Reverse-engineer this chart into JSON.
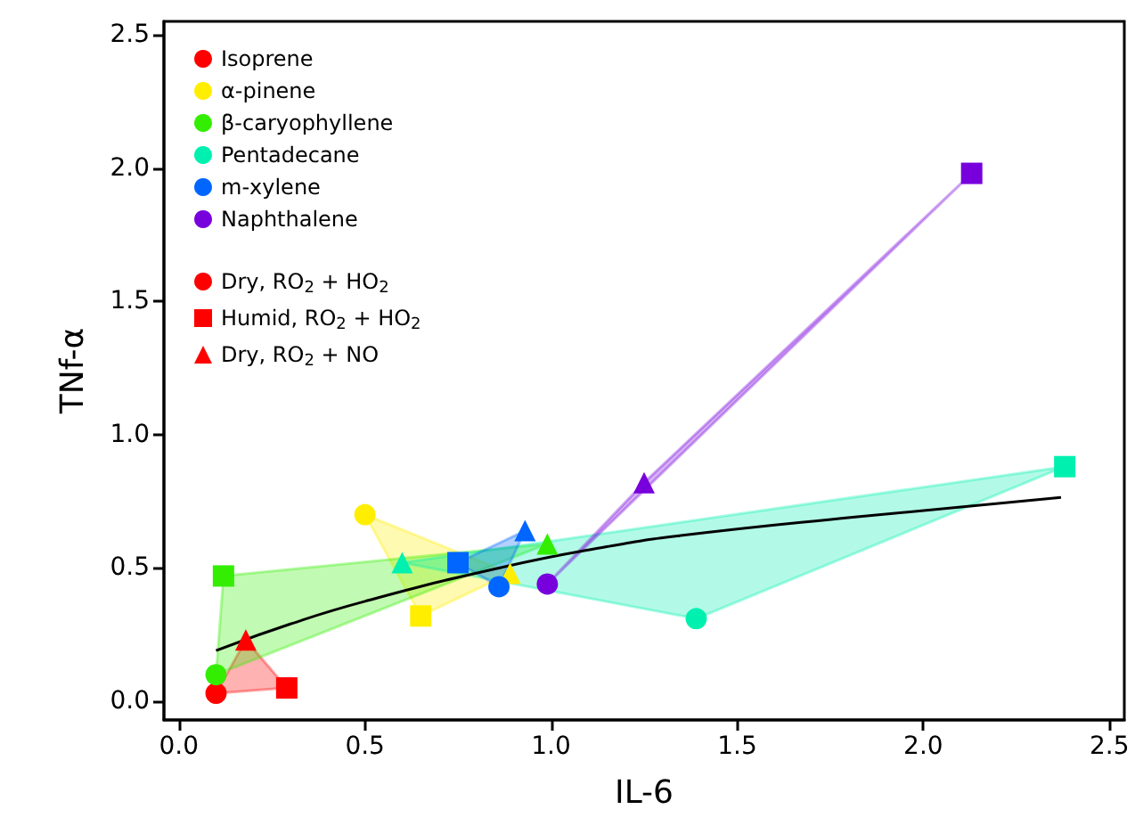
{
  "chart_data": {
    "type": "scatter",
    "xlabel": "IL-6",
    "ylabel": "TNf-α",
    "xlim": [
      -0.04,
      2.54
    ],
    "ylim": [
      -0.07,
      2.55
    ],
    "xticks": [
      {
        "value": 0,
        "label": "0.0"
      },
      {
        "value": 0.5,
        "label": "0.5"
      },
      {
        "value": 1,
        "label": "1.0"
      },
      {
        "value": 1.5,
        "label": "1.5"
      },
      {
        "value": 2,
        "label": "2.0"
      },
      {
        "value": 2.5,
        "label": "2.5"
      }
    ],
    "yticks": [
      {
        "value": 0,
        "label": "0.0"
      },
      {
        "value": 0.5,
        "label": "0.5"
      },
      {
        "value": 1,
        "label": "1.0"
      },
      {
        "value": 1.5,
        "label": "1.5"
      },
      {
        "value": 2,
        "label": "2.0"
      },
      {
        "value": 2.5,
        "label": "2.5"
      }
    ],
    "grid": false,
    "legend": "top left",
    "series": [
      {
        "name": "Isoprene",
        "color": "#ff0000",
        "x": [
          0.1,
          0.29,
          0.18
        ],
        "values": [
          0.03,
          0.05,
          0.23
        ],
        "marker": [
          "circle",
          "square",
          "triangle"
        ]
      },
      {
        "name": "α-pinene",
        "color": "#ffee00",
        "x": [
          0.5,
          0.65,
          0.89
        ],
        "values": [
          0.7,
          0.32,
          0.48
        ],
        "marker": [
          "circle",
          "square",
          "triangle"
        ]
      },
      {
        "name": "β-caryophyllene",
        "color": "#33ee00",
        "x": [
          0.1,
          0.12,
          0.99
        ],
        "values": [
          0.1,
          0.47,
          0.59
        ],
        "marker": [
          "circle",
          "square",
          "triangle"
        ]
      },
      {
        "name": "Pentadecane",
        "color": "#00f0b0",
        "x": [
          1.39,
          2.38,
          0.6
        ],
        "values": [
          0.31,
          0.88,
          0.52
        ],
        "marker": [
          "circle",
          "square",
          "triangle"
        ]
      },
      {
        "name": "m-xylene",
        "color": "#0066ff",
        "x": [
          0.86,
          0.75,
          0.93
        ],
        "values": [
          0.43,
          0.52,
          0.64
        ],
        "marker": [
          "circle",
          "square",
          "triangle"
        ]
      },
      {
        "name": "Naphthalene",
        "color": "#7700dd",
        "x": [
          0.99,
          2.13,
          1.25
        ],
        "values": [
          0.44,
          1.98,
          0.82
        ],
        "marker": [
          "circle",
          "square",
          "triangle"
        ]
      },
      {
        "name": "Dry, RO$_{2}$ + HO$_{2}$",
        "color": "#ff0000",
        "marker": "circle"
      },
      {
        "name": "Humid, RO$_{2}$ + HO$_{2}$",
        "color": "#ff0000",
        "marker": "square"
      },
      {
        "name": "Dry, RO$_{2}$ + NO",
        "color": "#ff0000",
        "marker": "triangle"
      },
      {
        "type": "area",
        "color": "#ff0000",
        "x": [
          0.1,
          0.29,
          0.18
        ],
        "values": [
          0.03,
          0.05,
          0.23
        ]
      },
      {
        "type": "area",
        "color": "#ffee00",
        "x": [
          0.5,
          0.65,
          0.89
        ],
        "values": [
          0.7,
          0.32,
          0.48
        ]
      },
      {
        "type": "area",
        "color": "#33ee00",
        "x": [
          0.1,
          0.12,
          0.99
        ],
        "values": [
          0.1,
          0.47,
          0.59
        ]
      },
      {
        "type": "area",
        "color": "#00f0b0",
        "x": [
          1.39,
          2.38,
          0.6
        ],
        "values": [
          0.31,
          0.88,
          0.52
        ]
      },
      {
        "type": "area",
        "color": "#0066ff",
        "x": [
          0.86,
          0.75,
          0.93
        ],
        "values": [
          0.43,
          0.52,
          0.64
        ]
      },
      {
        "type": "area",
        "color": "#7700dd",
        "x": [
          0.99,
          2.13,
          1.25
        ],
        "values": [
          0.44,
          1.98,
          0.82
        ]
      },
      {
        "type": "line",
        "color": "#000000",
        "x": [
          0.1,
          0.3,
          0.5,
          0.86,
          1.15,
          1.34,
          1.81,
          2.37
        ],
        "values": [
          0.19,
          0.29,
          0.375,
          0.5,
          0.58,
          0.62,
          0.69,
          0.765
        ]
      }
    ]
  }
}
